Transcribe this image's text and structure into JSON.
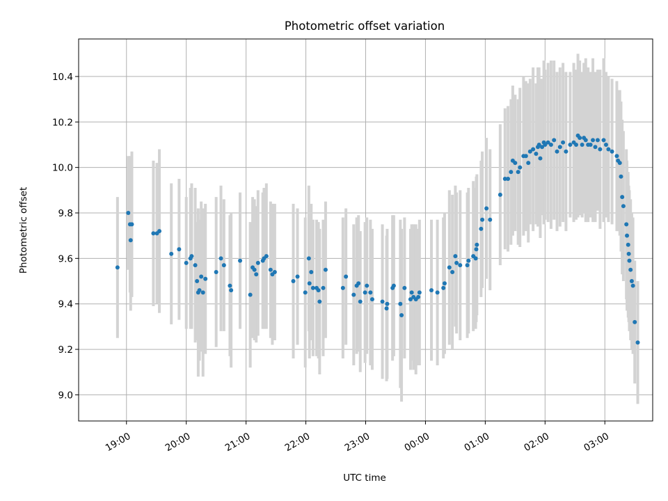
{
  "chart_data": {
    "type": "scatter",
    "title": "Photometric offset variation",
    "xlabel": "UTC time",
    "ylabel": "Photometric offset",
    "x_unit": "hours relative to 00:00 UTC",
    "xlim": [
      -5.8,
      3.8
    ],
    "ylim": [
      8.885,
      10.565
    ],
    "x_ticks": [
      {
        "value": -5,
        "label": "19:00"
      },
      {
        "value": -4,
        "label": "20:00"
      },
      {
        "value": -3,
        "label": "21:00"
      },
      {
        "value": -2,
        "label": "22:00"
      },
      {
        "value": -1,
        "label": "23:00"
      },
      {
        "value": 0,
        "label": "00:00"
      },
      {
        "value": 1,
        "label": "01:00"
      },
      {
        "value": 2,
        "label": "02:00"
      },
      {
        "value": 3,
        "label": "03:00"
      }
    ],
    "y_ticks": [
      {
        "value": 9.0,
        "label": "9.0"
      },
      {
        "value": 9.2,
        "label": "9.2"
      },
      {
        "value": 9.4,
        "label": "9.4"
      },
      {
        "value": 9.6,
        "label": "9.6"
      },
      {
        "value": 9.8,
        "label": "9.8"
      },
      {
        "value": 10.0,
        "label": "10.0"
      },
      {
        "value": 10.2,
        "label": "10.2"
      },
      {
        "value": 10.4,
        "label": "10.4"
      }
    ],
    "grid": true,
    "marker_color": "#1f77b4",
    "errorbar_color": "#d3d3d3",
    "series": [
      {
        "points": [
          [
            -5.15,
            9.56,
            0.31
          ],
          [
            -4.97,
            9.8,
            0.25
          ],
          [
            -4.94,
            9.75,
            0.3
          ],
          [
            -4.93,
            9.68,
            0.31
          ],
          [
            -4.91,
            9.75,
            0.32
          ],
          [
            -4.55,
            9.71,
            0.32
          ],
          [
            -4.49,
            9.71,
            0.31
          ],
          [
            -4.45,
            9.72,
            0.36
          ],
          [
            -4.25,
            9.62,
            0.31
          ],
          [
            -4.12,
            9.64,
            0.31
          ],
          [
            -4.0,
            9.58,
            0.29
          ],
          [
            -3.93,
            9.6,
            0.31
          ],
          [
            -3.91,
            9.61,
            0.32
          ],
          [
            -3.85,
            9.57,
            0.34
          ],
          [
            -3.82,
            9.5,
            0.26
          ],
          [
            -3.8,
            9.45,
            0.37
          ],
          [
            -3.78,
            9.46,
            0.31
          ],
          [
            -3.75,
            9.52,
            0.33
          ],
          [
            -3.72,
            9.45,
            0.37
          ],
          [
            -3.68,
            9.51,
            0.33
          ],
          [
            -3.5,
            9.54,
            0.33
          ],
          [
            -3.42,
            9.6,
            0.32
          ],
          [
            -3.37,
            9.57,
            0.29
          ],
          [
            -3.27,
            9.48,
            0.31
          ],
          [
            -3.25,
            9.46,
            0.34
          ],
          [
            -3.1,
            9.59,
            0.3
          ],
          [
            -2.93,
            9.44,
            0.32
          ],
          [
            -2.89,
            9.56,
            0.31
          ],
          [
            -2.86,
            9.55,
            0.31
          ],
          [
            -2.83,
            9.53,
            0.3
          ],
          [
            -2.8,
            9.58,
            0.32
          ],
          [
            -2.72,
            9.59,
            0.3
          ],
          [
            -2.7,
            9.6,
            0.31
          ],
          [
            -2.66,
            9.61,
            0.32
          ],
          [
            -2.59,
            9.55,
            0.3
          ],
          [
            -2.56,
            9.53,
            0.31
          ],
          [
            -2.52,
            9.54,
            0.3
          ],
          [
            -2.21,
            9.5,
            0.34
          ],
          [
            -2.14,
            9.52,
            0.3
          ],
          [
            -2.01,
            9.45,
            0.33
          ],
          [
            -1.95,
            9.6,
            0.32
          ],
          [
            -1.94,
            9.49,
            0.33
          ],
          [
            -1.91,
            9.54,
            0.3
          ],
          [
            -1.88,
            9.47,
            0.3
          ],
          [
            -1.82,
            9.47,
            0.3
          ],
          [
            -1.79,
            9.46,
            0.3
          ],
          [
            -1.77,
            9.41,
            0.32
          ],
          [
            -1.71,
            9.47,
            0.3
          ],
          [
            -1.67,
            9.55,
            0.3
          ],
          [
            -1.38,
            9.47,
            0.31
          ],
          [
            -1.33,
            9.52,
            0.3
          ],
          [
            -1.2,
            9.44,
            0.31
          ],
          [
            -1.15,
            9.48,
            0.3
          ],
          [
            -1.12,
            9.49,
            0.3
          ],
          [
            -1.09,
            9.41,
            0.31
          ],
          [
            -1.01,
            9.45,
            0.31
          ],
          [
            -0.98,
            9.48,
            0.3
          ],
          [
            -0.92,
            9.45,
            0.32
          ],
          [
            -0.89,
            9.42,
            0.31
          ],
          [
            -0.72,
            9.41,
            0.34
          ],
          [
            -0.65,
            9.38,
            0.32
          ],
          [
            -0.64,
            9.4,
            0.33
          ],
          [
            -0.55,
            9.47,
            0.32
          ],
          [
            -0.53,
            9.48,
            0.31
          ],
          [
            -0.42,
            9.4,
            0.37
          ],
          [
            -0.4,
            9.35,
            0.38
          ],
          [
            -0.35,
            9.47,
            0.31
          ],
          [
            -0.25,
            9.42,
            0.31
          ],
          [
            -0.23,
            9.45,
            0.3
          ],
          [
            -0.2,
            9.43,
            0.32
          ],
          [
            -0.16,
            9.42,
            0.33
          ],
          [
            -0.12,
            9.43,
            0.3
          ],
          [
            -0.1,
            9.45,
            0.32
          ],
          [
            0.1,
            9.46,
            0.31
          ],
          [
            0.2,
            9.45,
            0.32
          ],
          [
            0.3,
            9.47,
            0.31
          ],
          [
            0.32,
            9.49,
            0.31
          ],
          [
            0.4,
            9.56,
            0.34
          ],
          [
            0.45,
            9.54,
            0.34
          ],
          [
            0.5,
            9.61,
            0.31
          ],
          [
            0.52,
            9.58,
            0.31
          ],
          [
            0.58,
            9.57,
            0.33
          ],
          [
            0.7,
            9.57,
            0.32
          ],
          [
            0.72,
            9.59,
            0.32
          ],
          [
            0.8,
            9.61,
            0.33
          ],
          [
            0.84,
            9.6,
            0.31
          ],
          [
            0.85,
            9.64,
            0.32
          ],
          [
            0.86,
            9.66,
            0.31
          ],
          [
            0.93,
            9.73,
            0.3
          ],
          [
            0.95,
            9.77,
            0.3
          ],
          [
            1.02,
            9.82,
            0.31
          ],
          [
            1.08,
            9.77,
            0.31
          ],
          [
            1.25,
            9.88,
            0.31
          ],
          [
            1.33,
            9.95,
            0.31
          ],
          [
            1.38,
            9.95,
            0.32
          ],
          [
            1.43,
            9.98,
            0.32
          ],
          [
            1.46,
            10.03,
            0.33
          ],
          [
            1.5,
            10.02,
            0.3
          ],
          [
            1.55,
            9.98,
            0.32
          ],
          [
            1.58,
            10.0,
            0.35
          ],
          [
            1.64,
            10.05,
            0.35
          ],
          [
            1.68,
            10.05,
            0.33
          ],
          [
            1.72,
            10.02,
            0.35
          ],
          [
            1.75,
            10.07,
            0.32
          ],
          [
            1.8,
            10.08,
            0.36
          ],
          [
            1.85,
            10.06,
            0.31
          ],
          [
            1.88,
            10.09,
            0.35
          ],
          [
            1.9,
            10.1,
            0.34
          ],
          [
            1.92,
            10.04,
            0.35
          ],
          [
            1.95,
            10.09,
            0.3
          ],
          [
            1.98,
            10.11,
            0.36
          ],
          [
            2.0,
            10.1,
            0.33
          ],
          [
            2.05,
            10.11,
            0.35
          ],
          [
            2.1,
            10.1,
            0.37
          ],
          [
            2.15,
            10.12,
            0.35
          ],
          [
            2.2,
            10.07,
            0.35
          ],
          [
            2.25,
            10.09,
            0.35
          ],
          [
            2.3,
            10.11,
            0.35
          ],
          [
            2.35,
            10.07,
            0.35
          ],
          [
            2.42,
            10.1,
            0.32
          ],
          [
            2.48,
            10.11,
            0.35
          ],
          [
            2.52,
            10.1,
            0.33
          ],
          [
            2.55,
            10.14,
            0.36
          ],
          [
            2.58,
            10.13,
            0.34
          ],
          [
            2.62,
            10.1,
            0.32
          ],
          [
            2.65,
            10.13,
            0.33
          ],
          [
            2.68,
            10.12,
            0.36
          ],
          [
            2.72,
            10.1,
            0.34
          ],
          [
            2.76,
            10.1,
            0.32
          ],
          [
            2.8,
            10.12,
            0.36
          ],
          [
            2.84,
            10.09,
            0.33
          ],
          [
            2.88,
            10.12,
            0.31
          ],
          [
            2.92,
            10.08,
            0.35
          ],
          [
            2.98,
            10.12,
            0.36
          ],
          [
            3.02,
            10.1,
            0.32
          ],
          [
            3.06,
            10.08,
            0.32
          ],
          [
            3.12,
            10.07,
            0.32
          ],
          [
            3.2,
            10.05,
            0.33
          ],
          [
            3.22,
            10.03,
            0.31
          ],
          [
            3.25,
            10.02,
            0.32
          ],
          [
            3.27,
            9.96,
            0.33
          ],
          [
            3.29,
            9.87,
            0.34
          ],
          [
            3.31,
            9.83,
            0.33
          ],
          [
            3.36,
            9.75,
            0.33
          ],
          [
            3.37,
            9.7,
            0.33
          ],
          [
            3.39,
            9.66,
            0.32
          ],
          [
            3.4,
            9.62,
            0.3
          ],
          [
            3.41,
            9.59,
            0.31
          ],
          [
            3.43,
            9.55,
            0.31
          ],
          [
            3.45,
            9.5,
            0.3
          ],
          [
            3.47,
            9.48,
            0.3
          ],
          [
            3.5,
            9.32,
            0.27
          ],
          [
            3.55,
            9.23,
            0.27
          ]
        ]
      }
    ]
  }
}
